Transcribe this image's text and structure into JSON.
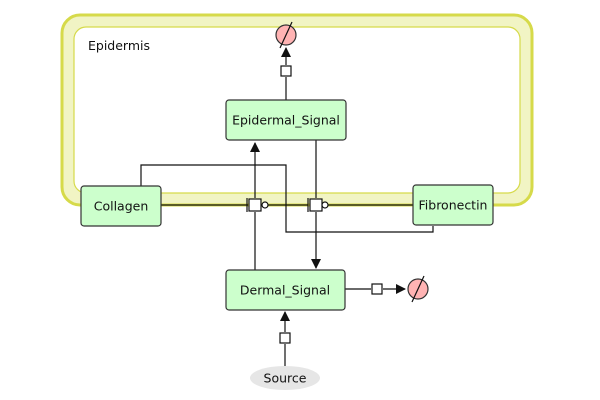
{
  "compartment": {
    "label": "Epidermis"
  },
  "nodes": {
    "epidermal_signal": "Epidermal_Signal",
    "collagen": "Collagen",
    "fibronectin": "Fibronectin",
    "dermal_signal": "Dermal_Signal",
    "source": "Source"
  },
  "colors": {
    "compartment_fill": "#f1f4c4",
    "compartment_stroke": "#d6da4a",
    "node_fill": "#ccffcc",
    "node_stroke": "#333333",
    "sink_fill": "#ffb3b3",
    "source_fill": "#e6e6e6"
  }
}
